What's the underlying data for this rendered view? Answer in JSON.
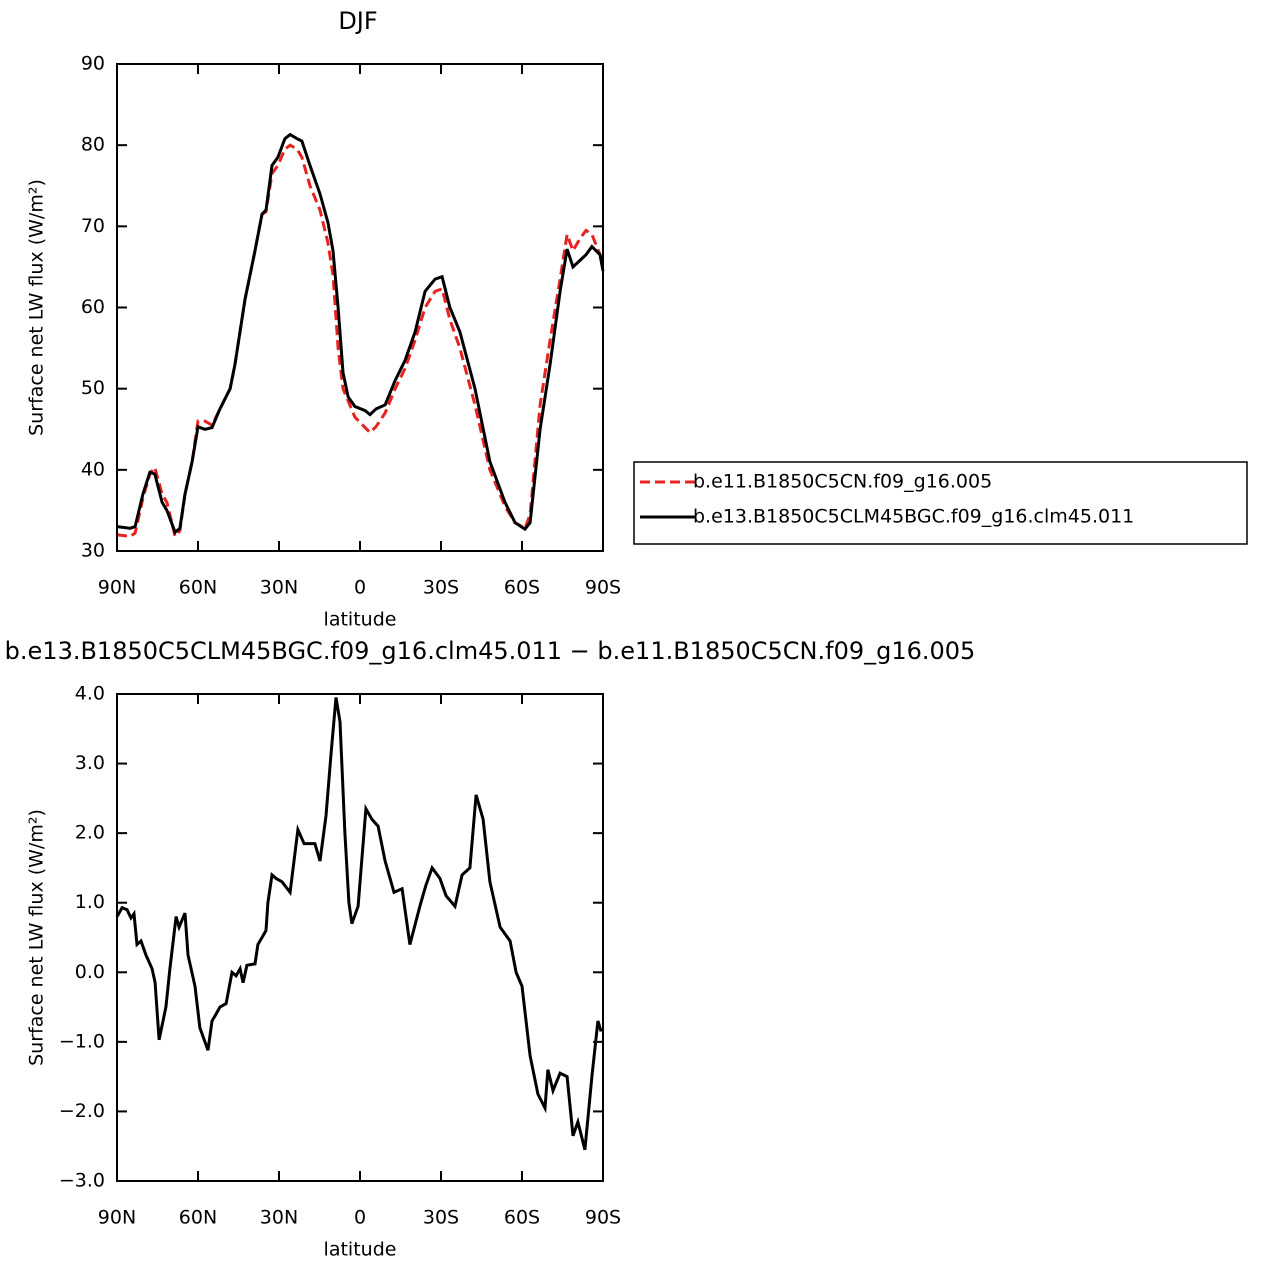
{
  "chart_data": [
    {
      "type": "line",
      "title": "DJF",
      "xlabel": "latitude",
      "ylabel": "Surface net LW flux (W/m²)",
      "xlim": [
        90,
        -90
      ],
      "ylim": [
        30,
        90
      ],
      "xticks": [
        {
          "value": 90,
          "label": "90N"
        },
        {
          "value": 60,
          "label": "60N"
        },
        {
          "value": 30,
          "label": "30N"
        },
        0,
        {
          "value": -30,
          "label": "30S"
        },
        {
          "value": -60,
          "label": "60S"
        },
        {
          "value": -90,
          "label": "90S"
        }
      ],
      "yticks": [
        30,
        40,
        50,
        60,
        70,
        80,
        90
      ],
      "legend": "right",
      "x": [
        90,
        85.2,
        83.3,
        80.4,
        77.8,
        76,
        73.3,
        71.5,
        68.5,
        66.7,
        64.8,
        62.2,
        60,
        57.4,
        54.8,
        51.9,
        48.1,
        46.3,
        42.6,
        38.9,
        36.3,
        34.8,
        32.6,
        30.4,
        27.8,
        25.9,
        23.3,
        21.5,
        18.5,
        14.8,
        11.9,
        10,
        8.1,
        6.3,
        4.4,
        1.9,
        -1.9,
        -3.7,
        -5.9,
        -9.3,
        -13,
        -16.7,
        -20.4,
        -24.1,
        -27.8,
        -30.4,
        -33.3,
        -37,
        -42.6,
        -48.1,
        -53.7,
        -57.4,
        -61.1,
        -63,
        -66.7,
        -70.4,
        -74.1,
        -76.7,
        -78.9,
        -81.5,
        -83.7,
        -85.9,
        -88.9,
        -90
      ],
      "series": [
        {
          "name": "b.e11.B1850C5CN.f09_g16.005",
          "color": "#e8231f",
          "dash": true,
          "values": [
            32,
            31.8,
            32.2,
            36.5,
            39.5,
            40.3,
            37,
            36,
            31.8,
            32.5,
            37,
            41,
            46,
            46,
            45.5,
            47.5,
            50,
            53,
            61,
            67,
            71.5,
            71.8,
            76.5,
            77.5,
            79.5,
            80,
            79.5,
            78.5,
            75,
            72,
            68,
            64,
            55,
            50,
            48.5,
            46.5,
            45.2,
            44.6,
            45.3,
            47,
            50,
            52.5,
            56,
            60,
            62,
            62.3,
            58.5,
            55,
            48,
            40,
            35.5,
            33.5,
            32.8,
            34.5,
            48,
            56,
            63.5,
            69,
            67,
            68.5,
            69.5,
            69,
            66.5,
            65.5
          ]
        },
        {
          "name": "b.e13.B1850C5CLM45BGC.f09_g16.clm45.011",
          "color": "#000000",
          "dash": false,
          "values": [
            33,
            32.8,
            33,
            37,
            39.7,
            39.5,
            36,
            35,
            32.3,
            32.8,
            37,
            41,
            45.3,
            45,
            45.2,
            47.5,
            50,
            53,
            61,
            67,
            71.5,
            72,
            77.5,
            78.5,
            80.8,
            81.3,
            80.8,
            80.5,
            77.5,
            74,
            70.5,
            67,
            60,
            52,
            49,
            47.8,
            47.3,
            46.8,
            47.5,
            48,
            51,
            53.5,
            57,
            62,
            63.5,
            63.8,
            60,
            57,
            50,
            41,
            36,
            33.5,
            32.7,
            33.5,
            45,
            53,
            62,
            67.2,
            65,
            65.8,
            66.5,
            67.5,
            66.5,
            64.5
          ]
        }
      ]
    },
    {
      "type": "line",
      "title": "b.e13.B1850C5CLM45BGC.f09_g16.clm45.011 − b.e11.B1850C5CN.f09_g16.005",
      "xlabel": "latitude",
      "ylabel": "Surface net LW flux (W/m²)",
      "xlim": [
        90,
        -90
      ],
      "ylim": [
        -3,
        4
      ],
      "xticks": [
        {
          "value": 90,
          "label": "90N"
        },
        {
          "value": 60,
          "label": "60N"
        },
        {
          "value": 30,
          "label": "30N"
        },
        0,
        {
          "value": -30,
          "label": "30S"
        },
        {
          "value": -60,
          "label": "60S"
        },
        {
          "value": -90,
          "label": "90S"
        }
      ],
      "yticks": [
        {
          "value": -3,
          "label": "−3.0"
        },
        {
          "value": -2,
          "label": "−2.0"
        },
        {
          "value": -1,
          "label": "−1.0"
        },
        {
          "value": 0,
          "label": "0.0"
        },
        {
          "value": 1,
          "label": "1.0"
        },
        {
          "value": 2,
          "label": "2.0"
        },
        {
          "value": 3,
          "label": "3.0"
        },
        {
          "value": 4,
          "label": "4.0"
        }
      ],
      "color": "#000000",
      "x": [
        90,
        88.1,
        86.3,
        84.8,
        83.7,
        82.6,
        81.1,
        79.3,
        77,
        75.9,
        74.4,
        71.9,
        70.4,
        68.1,
        67,
        64.8,
        63.7,
        61.1,
        59.3,
        56.3,
        54.8,
        53.3,
        51.9,
        49.6,
        47.4,
        45.9,
        44.4,
        43.3,
        41.9,
        38.9,
        37.8,
        36.3,
        34.8,
        34.1,
        32.6,
        31.1,
        28.9,
        25.9,
        23,
        20.7,
        16.7,
        14.8,
        12.6,
        10.7,
        8.9,
        7.4,
        5.6,
        4.1,
        3,
        0.7,
        -2.2,
        -4.4,
        -6.7,
        -9.3,
        -12.6,
        -15.6,
        -18.5,
        -22.2,
        -24.4,
        -26.7,
        -29.6,
        -31.9,
        -35.2,
        -37.8,
        -40.7,
        -43,
        -45.6,
        -48.1,
        -51.9,
        -55.6,
        -57.8,
        -60,
        -63,
        -65.9,
        -68.5,
        -69.6,
        -71.5,
        -74.1,
        -76.7,
        -78.9,
        -80.7,
        -83.3,
        -85.9,
        -88.1,
        -89.3
      ],
      "values": [
        0.8,
        0.93,
        0.9,
        0.78,
        0.84,
        0.4,
        0.45,
        0.25,
        0.05,
        -0.15,
        -0.97,
        -0.5,
        0.05,
        0.8,
        0.65,
        0.85,
        0.25,
        -0.2,
        -0.8,
        -1.12,
        -0.7,
        -0.6,
        -0.5,
        -0.45,
        0,
        -0.05,
        0.05,
        -0.15,
        0.1,
        0.12,
        0.4,
        0.5,
        0.6,
        1.0,
        1.4,
        1.35,
        1.3,
        1.15,
        2.05,
        1.85,
        1.85,
        1.6,
        2.25,
        3.15,
        3.95,
        3.6,
        2.0,
        1.0,
        0.7,
        0.95,
        2.35,
        2.2,
        2.1,
        1.6,
        1.15,
        1.2,
        0.4,
        0.95,
        1.25,
        1.5,
        1.35,
        1.1,
        0.95,
        1.4,
        1.5,
        2.55,
        2.2,
        1.3,
        0.65,
        0.45,
        0.0,
        -0.2,
        -1.2,
        -1.75,
        -1.95,
        -1.4,
        -1.7,
        -1.45,
        -1.5,
        -2.35,
        -2.15,
        -2.55,
        -1.5,
        -0.7,
        -0.85
      ]
    }
  ]
}
